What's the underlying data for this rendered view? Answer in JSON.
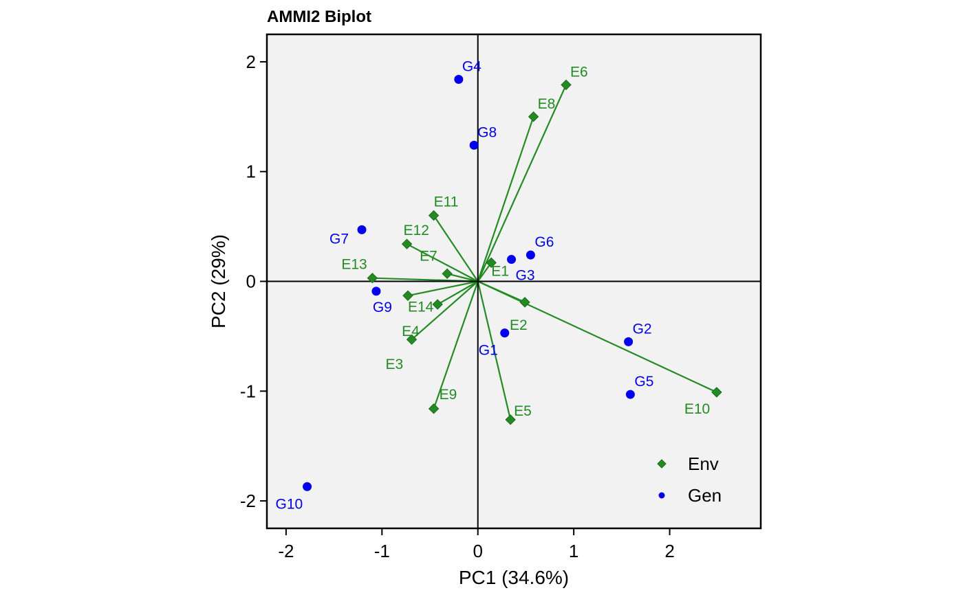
{
  "chart_data": {
    "type": "scatter",
    "title": "AMMI2 Biplot",
    "xlabel": "PC1 (34.6%)",
    "ylabel": "PC2 (29%)",
    "xlim": [
      -2.2,
      2.95
    ],
    "ylim": [
      -2.25,
      2.25
    ],
    "xticks": [
      -2,
      -1,
      0,
      1,
      2
    ],
    "yticks": [
      -2,
      -1,
      0,
      1,
      2
    ],
    "grid": false,
    "legend_position": "bottom-right",
    "colors": {
      "env": "#228B22",
      "gen": "#0000EE",
      "panel": "#F2F2F2"
    },
    "series": [
      {
        "name": "Env",
        "marker": "diamond",
        "points": [
          {
            "label": "E1",
            "x": 0.14,
            "y": 0.17
          },
          {
            "label": "E2",
            "x": 0.49,
            "y": -0.19
          },
          {
            "label": "E3",
            "x": -0.69,
            "y": -0.53
          },
          {
            "label": "E4",
            "x": -0.42,
            "y": -0.21
          },
          {
            "label": "E5",
            "x": 0.34,
            "y": -1.26
          },
          {
            "label": "E6",
            "x": 0.92,
            "y": 1.79
          },
          {
            "label": "E7",
            "x": -0.32,
            "y": 0.07
          },
          {
            "label": "E8",
            "x": 0.58,
            "y": 1.5
          },
          {
            "label": "E9",
            "x": -0.46,
            "y": -1.16
          },
          {
            "label": "E10",
            "x": 2.49,
            "y": -1.01
          },
          {
            "label": "E11",
            "x": -0.46,
            "y": 0.6
          },
          {
            "label": "E12",
            "x": -0.74,
            "y": 0.34
          },
          {
            "label": "E13",
            "x": -1.1,
            "y": 0.03
          },
          {
            "label": "E14",
            "x": -0.73,
            "y": -0.13
          }
        ]
      },
      {
        "name": "Gen",
        "marker": "circle",
        "points": [
          {
            "label": "G1",
            "x": 0.28,
            "y": -0.47
          },
          {
            "label": "G2",
            "x": 1.57,
            "y": -0.55
          },
          {
            "label": "G3",
            "x": 0.35,
            "y": 0.2
          },
          {
            "label": "G4",
            "x": -0.2,
            "y": 1.84
          },
          {
            "label": "G5",
            "x": 1.59,
            "y": -1.03
          },
          {
            "label": "G6",
            "x": 0.55,
            "y": 0.24
          },
          {
            "label": "G7",
            "x": -1.21,
            "y": 0.47
          },
          {
            "label": "G8",
            "x": -0.04,
            "y": 1.24
          },
          {
            "label": "G9",
            "x": -1.06,
            "y": -0.09
          },
          {
            "label": "G10",
            "x": -1.78,
            "y": -1.87
          }
        ]
      }
    ]
  }
}
